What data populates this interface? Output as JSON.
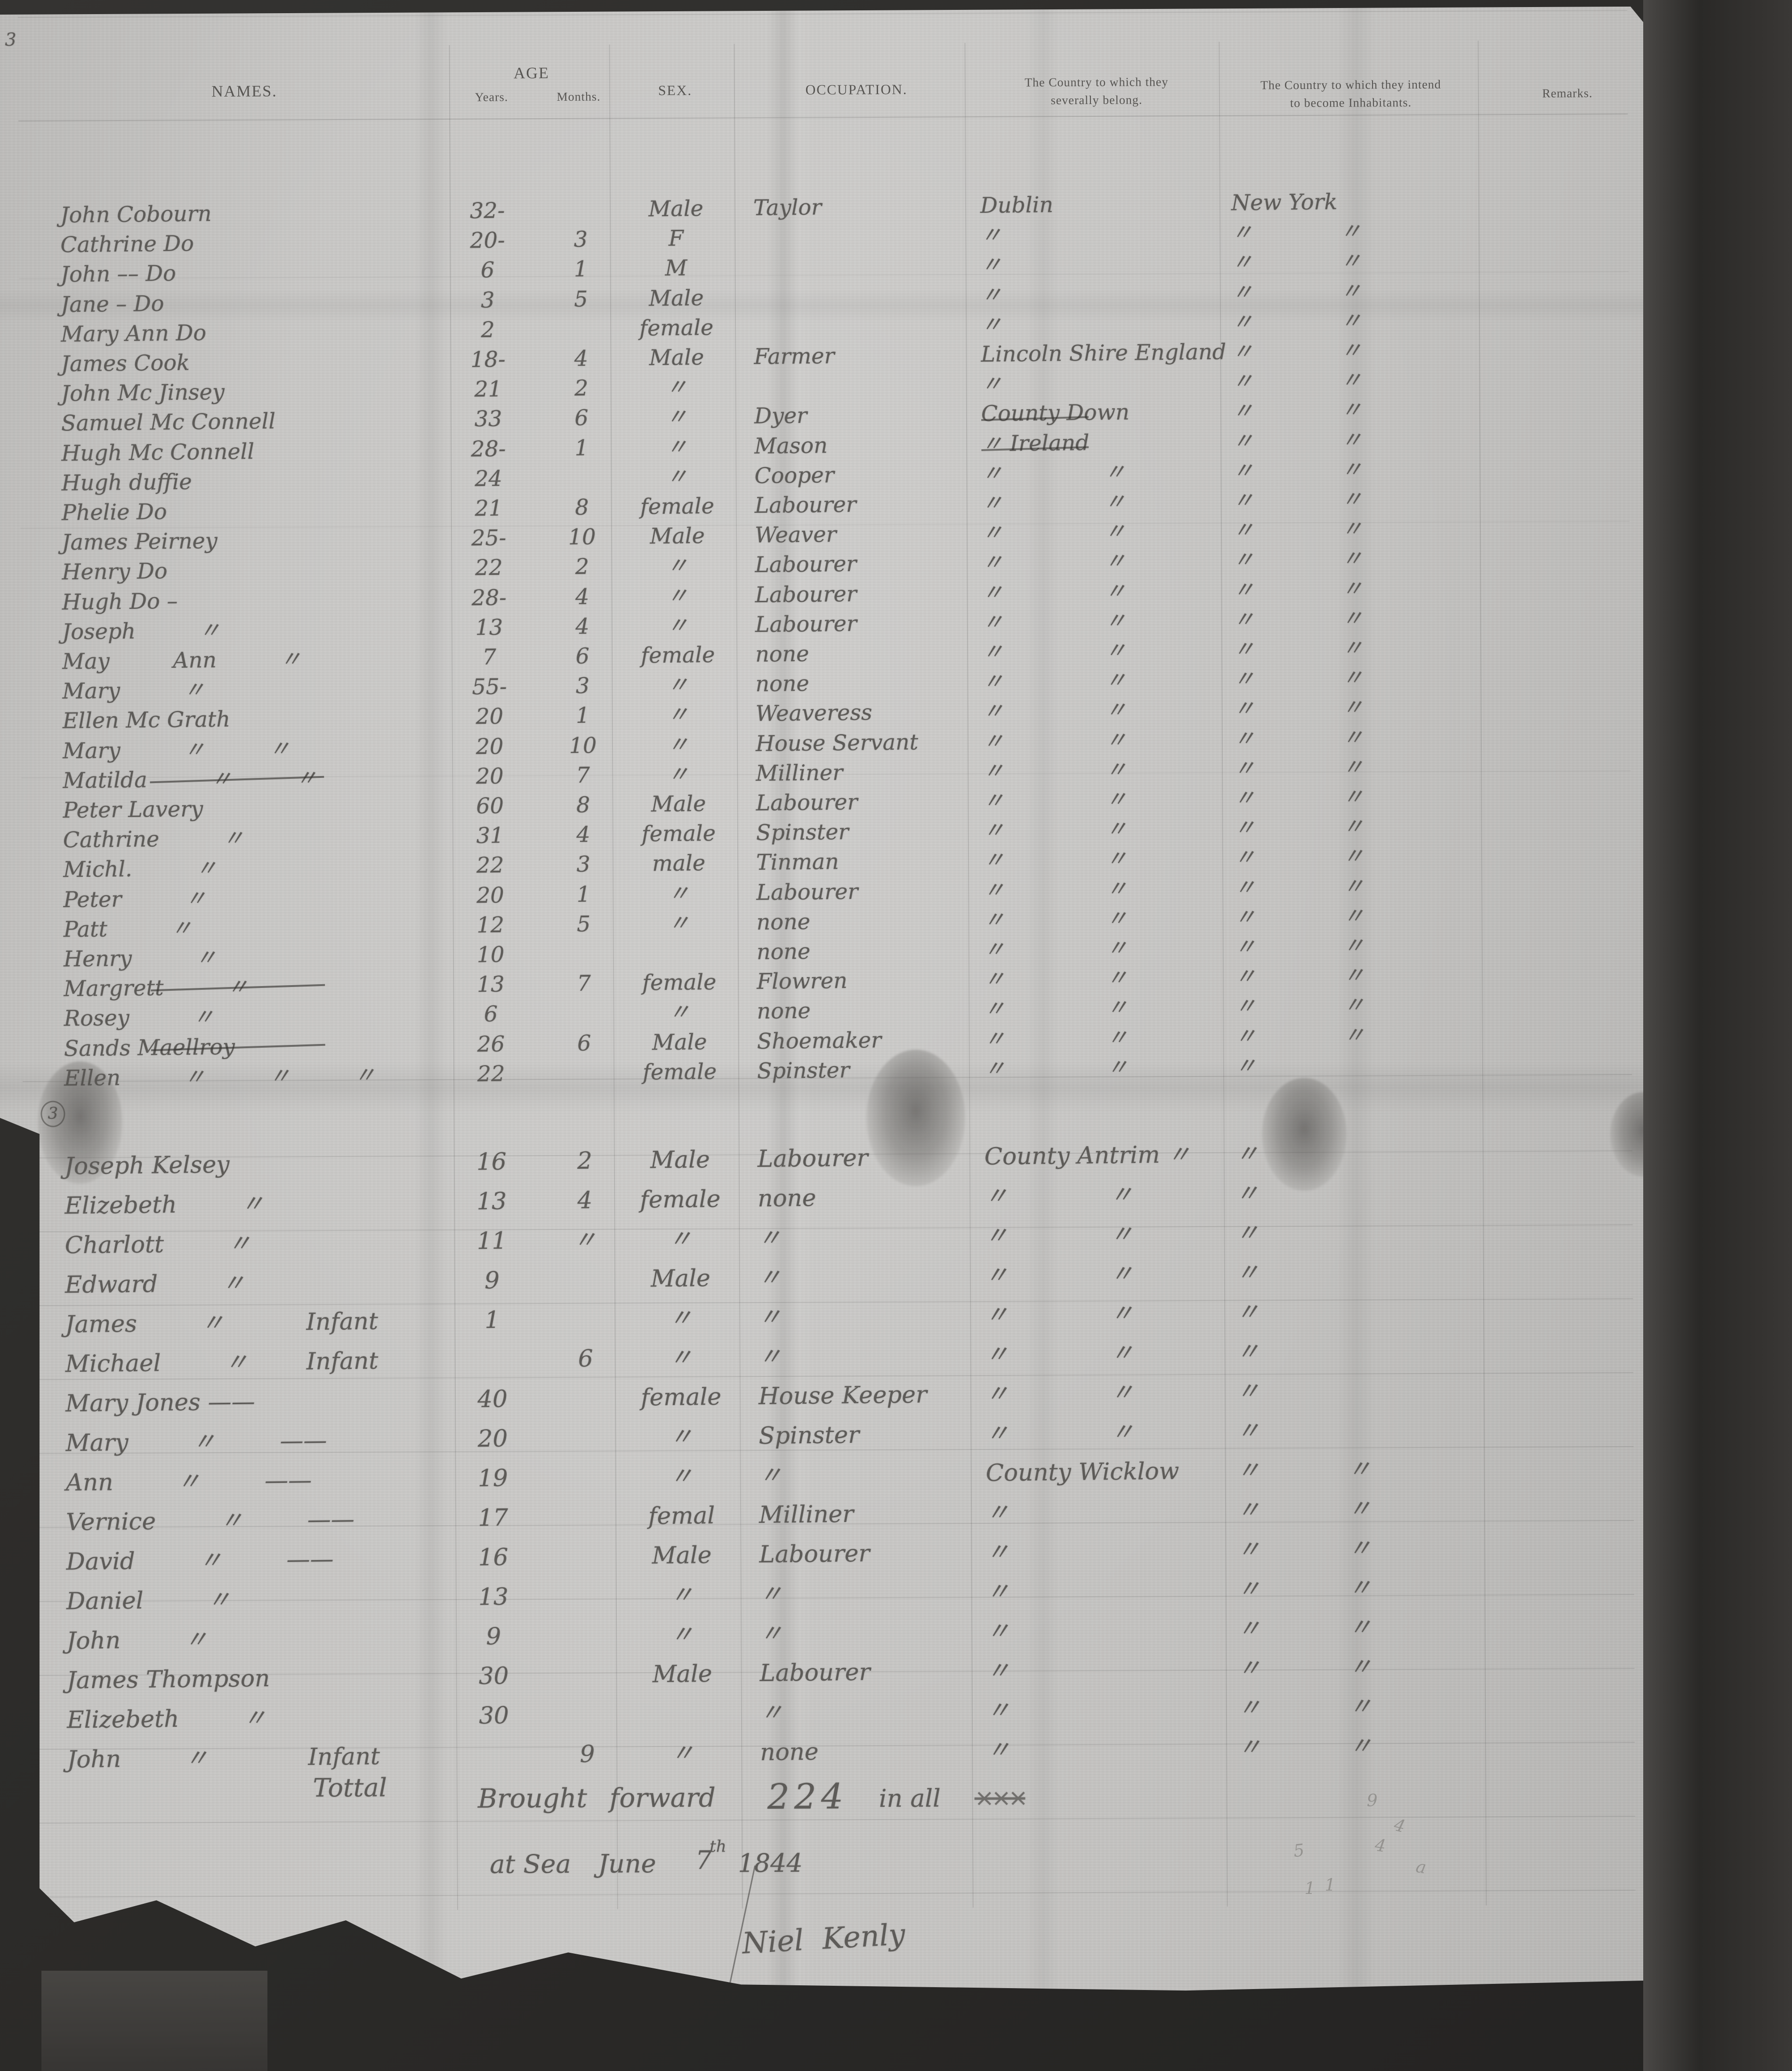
{
  "page": {
    "number": "3",
    "margin_mark": "3"
  },
  "header": {
    "names": "NAMES.",
    "age": "AGE",
    "age_years": "Years.",
    "age_months": "Months.",
    "sex": "SEX.",
    "occupation": "OCCUPATION.",
    "belong_line1": "The Country to which they",
    "belong_line2": "severally belong.",
    "intend_line1": "The Country to which they intend",
    "intend_line2": "to become Inhabitants.",
    "remarks": "Remarks."
  },
  "rows": [
    {
      "n": "John Cobourn",
      "y": "32-",
      "m": "",
      "s": "Male",
      "o": "Taylor",
      "b": "Dublin",
      "i": "New York",
      "r": ""
    },
    {
      "n": "Cathrine Do",
      "y": "20-",
      "m": "3",
      "s": "F",
      "o": "",
      "b": "〃",
      "i": "〃 〃",
      "r": ""
    },
    {
      "n": "John –– Do",
      "y": "6",
      "m": "1",
      "s": "M",
      "o": "",
      "b": "〃",
      "i": "〃 〃",
      "r": ""
    },
    {
      "n": "Jane – Do",
      "y": "3",
      "m": "5",
      "s": "Male",
      "o": "",
      "b": "〃",
      "i": "〃 〃",
      "r": ""
    },
    {
      "n": "Mary Ann Do",
      "y": "2",
      "m": "",
      "s": "female",
      "o": "",
      "b": "〃",
      "i": "〃 〃",
      "r": ""
    },
    {
      "n": "James Cook",
      "y": "18-",
      "m": "4",
      "s": "Male",
      "o": "Farmer",
      "b": "Lincoln Shire England",
      "i": "〃 〃",
      "r": ""
    },
    {
      "n": "John Mc Jinsey",
      "y": "21",
      "m": "2",
      "s": "〃",
      "o": "",
      "b": "〃",
      "i": "〃 〃",
      "r": ""
    },
    {
      "n": "Samuel Mc Connell",
      "y": "33",
      "m": "6",
      "s": "〃",
      "o": "Dyer",
      "b": "County Down",
      "i": "〃 〃",
      "r": "",
      "strike_belong": true
    },
    {
      "n": "Hugh Mc Connell",
      "y": "28-",
      "m": "1",
      "s": "〃",
      "o": "Mason",
      "b": "〃 Ireland",
      "i": "〃 〃",
      "r": "",
      "strike_belong": true
    },
    {
      "n": "Hugh duffie",
      "y": "24",
      "m": "",
      "s": "〃",
      "o": "Cooper",
      "b": "〃 〃",
      "i": "〃 〃",
      "r": ""
    },
    {
      "n": "Phelie Do",
      "y": "21",
      "m": "8",
      "s": "female",
      "o": "Labourer",
      "b": "〃 〃",
      "i": "〃 〃",
      "r": ""
    },
    {
      "n": "James Peirney",
      "y": "25-",
      "m": "10",
      "s": "Male",
      "o": "Weaver",
      "b": "〃 〃",
      "i": "〃 〃",
      "r": ""
    },
    {
      "n": "Henry Do",
      "y": "22",
      "m": "2",
      "s": "〃",
      "o": "Labourer",
      "b": "〃 〃",
      "i": "〃 〃",
      "r": ""
    },
    {
      "n": "Hugh Do –",
      "y": "28-",
      "m": "4",
      "s": "〃",
      "o": "Labourer",
      "b": "〃 〃",
      "i": "〃 〃",
      "r": ""
    },
    {
      "n": "Joseph 〃",
      "y": "13",
      "m": "4",
      "s": "〃",
      "o": "Labourer",
      "b": "〃 〃",
      "i": "〃 〃",
      "r": ""
    },
    {
      "n": "May Ann 〃",
      "y": "7",
      "m": "6",
      "s": "female",
      "o": "none",
      "b": "〃 〃",
      "i": "〃 〃",
      "r": ""
    },
    {
      "n": "Mary 〃",
      "y": "55-",
      "m": "3",
      "s": "〃",
      "o": "none",
      "b": "〃 〃",
      "i": "〃 〃",
      "r": ""
    },
    {
      "n": "Ellen Mc Grath",
      "y": "20",
      "m": "1",
      "s": "〃",
      "o": "Weaveress",
      "b": "〃 〃",
      "i": "〃 〃",
      "r": ""
    },
    {
      "n": "Mary 〃 〃",
      "y": "20",
      "m": "10",
      "s": "〃",
      "o": "House Servant",
      "b": "〃 〃",
      "i": "〃 〃",
      "r": ""
    },
    {
      "n": "Matilda 〃 〃",
      "y": "20",
      "m": "7",
      "s": "〃",
      "o": "Milliner",
      "b": "〃 〃",
      "i": "〃 〃",
      "r": "",
      "strike_name": true
    },
    {
      "n": "Peter Lavery",
      "y": "60",
      "m": "8",
      "s": "Male",
      "o": "Labourer",
      "b": "〃 〃",
      "i": "〃 〃",
      "r": ""
    },
    {
      "n": "Cathrine 〃",
      "y": "31",
      "m": "4",
      "s": "female",
      "o": "Spinster",
      "b": "〃 〃",
      "i": "〃 〃",
      "r": ""
    },
    {
      "n": "Michl. 〃",
      "y": "22",
      "m": "3",
      "s": "male",
      "o": "Tinman",
      "b": "〃 〃",
      "i": "〃 〃",
      "r": ""
    },
    {
      "n": "Peter 〃",
      "y": "20",
      "m": "1",
      "s": "〃",
      "o": "Labourer",
      "b": "〃 〃",
      "i": "〃 〃",
      "r": ""
    },
    {
      "n": "Patt 〃",
      "y": "12",
      "m": "5",
      "s": "〃",
      "o": "none",
      "b": "〃 〃",
      "i": "〃 〃",
      "r": ""
    },
    {
      "n": "Henry 〃",
      "y": "10",
      "m": "",
      "s": "",
      "o": "none",
      "b": "〃 〃",
      "i": "〃 〃",
      "r": ""
    },
    {
      "n": "Margrett 〃",
      "y": "13",
      "m": "7",
      "s": "female",
      "o": "Flowren",
      "b": "〃 〃",
      "i": "〃 〃",
      "r": "",
      "strike_name": true
    },
    {
      "n": "Rosey 〃",
      "y": "6",
      "m": "",
      "s": "〃",
      "o": "none",
      "b": "〃 〃",
      "i": "〃 〃",
      "r": ""
    },
    {
      "n": "Sands Maellroy",
      "y": "26",
      "m": "6",
      "s": "Male",
      "o": "Shoemaker",
      "b": "〃 〃",
      "i": "〃 〃",
      "r": "",
      "strike_name": true
    },
    {
      "n": "Ellen 〃 〃 〃",
      "y": "22",
      "m": "",
      "s": "female",
      "o": "Spinster",
      "b": "〃 〃",
      "i": "〃",
      "r": ""
    },
    {
      "n": "Joseph Kelsey",
      "y": "16",
      "m": "2",
      "s": "Male",
      "o": "Labourer",
      "b": "County Antrim 〃",
      "i": "〃",
      "r": ""
    },
    {
      "n": "Elizebeth 〃",
      "y": "13",
      "m": "4",
      "s": "female",
      "o": "none",
      "b": "〃 〃",
      "i": "〃",
      "r": ""
    },
    {
      "n": "Charlott 〃",
      "y": "11",
      "m": "〃",
      "s": "〃",
      "o": "〃",
      "b": "〃 〃",
      "i": "〃",
      "r": ""
    },
    {
      "n": "Edward 〃",
      "y": "9",
      "m": "",
      "s": "Male",
      "o": "〃",
      "b": "〃 〃",
      "i": "〃",
      "r": ""
    },
    {
      "n": "James 〃",
      "note": "Infant",
      "y": "1",
      "m": "",
      "s": "〃",
      "o": "〃",
      "b": "〃 〃",
      "i": "〃",
      "r": ""
    },
    {
      "n": "Michael 〃",
      "note": "Infant",
      "y": "",
      "m": "6",
      "s": "〃",
      "o": "〃",
      "b": "〃 〃",
      "i": "〃",
      "r": ""
    },
    {
      "n": "Mary Jones ——",
      "y": "40",
      "m": "",
      "s": "female",
      "o": "House Keeper",
      "b": "〃 〃",
      "i": "〃",
      "r": ""
    },
    {
      "n": "Mary 〃 ——",
      "y": "20",
      "m": "",
      "s": "〃",
      "o": "Spinster",
      "b": "〃 〃",
      "i": "〃",
      "r": ""
    },
    {
      "n": "Ann 〃 ——",
      "y": "19",
      "m": "",
      "s": "〃",
      "o": "〃",
      "b": "County Wicklow",
      "i": "〃 〃",
      "r": ""
    },
    {
      "n": "Vernice 〃 ——",
      "y": "17",
      "m": "",
      "s": "femal",
      "o": "Milliner",
      "b": "〃",
      "i": "〃 〃",
      "r": ""
    },
    {
      "n": "David 〃 ——",
      "y": "16",
      "m": "",
      "s": "Male",
      "o": "Labourer",
      "b": "〃",
      "i": "〃 〃",
      "r": ""
    },
    {
      "n": "Daniel 〃",
      "y": "13",
      "m": "",
      "s": "〃",
      "o": "〃",
      "b": "〃",
      "i": "〃 〃",
      "r": ""
    },
    {
      "n": "John 〃",
      "y": "9",
      "m": "",
      "s": "〃",
      "o": "〃",
      "b": "〃",
      "i": "〃 〃",
      "r": ""
    },
    {
      "n": "James Thompson",
      "y": "30",
      "m": "",
      "s": "Male",
      "o": "Labourer",
      "b": "〃",
      "i": "〃 〃",
      "r": ""
    },
    {
      "n": "Elizebeth 〃",
      "y": "30",
      "m": "",
      "s": "",
      "o": "〃",
      "b": "〃",
      "i": "〃 〃",
      "r": ""
    },
    {
      "n": "John 〃",
      "note": "Infant",
      "y": "",
      "m": "9",
      "s": "〃",
      "o": "none",
      "b": "〃",
      "i": "〃 〃",
      "r": ""
    }
  ],
  "summary": {
    "total_label": "Tottal",
    "brought_forward": "Brought forward",
    "count": "224",
    "in_all": "in all",
    "struck_scribble": "×××",
    "dateline_pre": "at Sea",
    "dateline_month": "June",
    "dateline_day": "7",
    "dateline_day_suffix": "th",
    "dateline_year": "1844",
    "signature": "Niel Kenly",
    "pencil_marks": [
      "9",
      "4",
      "4",
      "5",
      "1",
      "1",
      "a"
    ]
  }
}
